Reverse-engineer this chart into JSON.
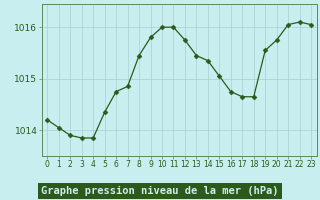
{
  "x": [
    0,
    1,
    2,
    3,
    4,
    5,
    6,
    7,
    8,
    9,
    10,
    11,
    12,
    13,
    14,
    15,
    16,
    17,
    18,
    19,
    20,
    21,
    22,
    23
  ],
  "y": [
    1014.2,
    1014.05,
    1013.9,
    1013.85,
    1013.85,
    1014.35,
    1014.75,
    1014.85,
    1015.45,
    1015.8,
    1016.0,
    1016.0,
    1015.75,
    1015.45,
    1015.35,
    1015.05,
    1014.75,
    1014.65,
    1014.65,
    1015.55,
    1015.75,
    1016.05,
    1016.1,
    1016.05
  ],
  "line_color": "#2d5a1b",
  "marker": "D",
  "marker_size": 2.5,
  "background_color": "#c8eef0",
  "grid_color": "#aacfcf",
  "xlabel": "Graphe pression niveau de la mer (hPa)",
  "xlabel_fontsize": 7.5,
  "tick_fontsize": 6.5,
  "yticks": [
    1014,
    1015,
    1016
  ],
  "ylim": [
    1013.5,
    1016.45
  ],
  "xlim": [
    -0.5,
    23.5
  ],
  "spine_color": "#5a8a5a",
  "label_bottom_color": "#1a4a1a",
  "label_bottom_bg": "#3a7a3a"
}
